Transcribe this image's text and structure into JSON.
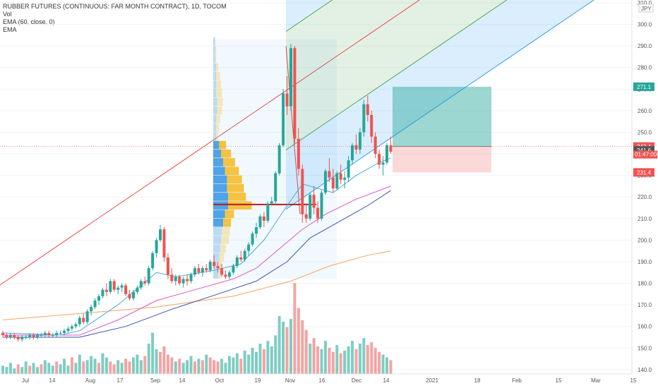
{
  "header": {
    "title": "RUBBER FUTURES (CONTINUOUS: FAR MONTH CONTRACT), 1D, TOCOM",
    "indicators": [
      "Vol",
      "EMA (60, close, 0)",
      "EMA"
    ]
  },
  "currency": "JPY",
  "colors": {
    "up": "#26a69a",
    "down": "#ef5350",
    "vol_up": "#7fcdc3",
    "vol_down": "#f5a3a3",
    "ema_fast": "#4ea8de",
    "ema_mid": "#e056c4",
    "ema_slow": "#f4a460",
    "pitch_red": "#e53935",
    "pitch_green": "#43a047",
    "pitch_blue": "#2196f3",
    "poc": "#b71c1c",
    "vp_up": "#4fa3e8",
    "vp_down": "#f5c242"
  },
  "price_tags": [
    {
      "value": 271.1,
      "label": "271.1",
      "color": "#26a69a"
    },
    {
      "value": 243.4,
      "label": "243.4",
      "color": "#ef5350"
    },
    {
      "value": 241.6,
      "label": "241.6",
      "color": "#555555"
    },
    {
      "value": 231.4,
      "label": "231.4",
      "color": "#ef5350"
    }
  ],
  "countdown": "01:47:00",
  "chart_data": {
    "type": "candlestick",
    "yaxis": {
      "min": 138,
      "max": 310,
      "ticks": [
        140,
        150,
        160,
        170,
        180,
        190,
        200,
        210,
        220,
        230,
        240,
        250,
        260,
        270,
        280,
        290,
        300,
        310
      ]
    },
    "xaxis": {
      "ticks": [
        "Jul",
        "14",
        "Aug",
        "17",
        "Sep",
        "14",
        "Oct",
        "19",
        "Nov",
        "16",
        "Dec",
        "14",
        "2021",
        "18",
        "Feb",
        "15",
        "Mar",
        "15"
      ]
    },
    "candles": [
      [
        157,
        158,
        155,
        156
      ],
      [
        156,
        157,
        154,
        155
      ],
      [
        155,
        157,
        154,
        156
      ],
      [
        156,
        157,
        154,
        155
      ],
      [
        155,
        156,
        153,
        154
      ],
      [
        154,
        156,
        153,
        155
      ],
      [
        155,
        156,
        154,
        155
      ],
      [
        155,
        157,
        154,
        156
      ],
      [
        156,
        157,
        154,
        155
      ],
      [
        155,
        157,
        154,
        156
      ],
      [
        156,
        157,
        155,
        156
      ],
      [
        156,
        158,
        155,
        157
      ],
      [
        157,
        158,
        155,
        156
      ],
      [
        156,
        157,
        155,
        156
      ],
      [
        156,
        158,
        155,
        157
      ],
      [
        157,
        158,
        156,
        157
      ],
      [
        157,
        159,
        156,
        158
      ],
      [
        158,
        160,
        157,
        159
      ],
      [
        159,
        161,
        158,
        160
      ],
      [
        160,
        162,
        159,
        161
      ],
      [
        161,
        165,
        160,
        164
      ],
      [
        164,
        166,
        161,
        162
      ],
      [
        162,
        168,
        161,
        167
      ],
      [
        167,
        170,
        165,
        169
      ],
      [
        169,
        173,
        168,
        172
      ],
      [
        172,
        175,
        170,
        174
      ],
      [
        174,
        178,
        173,
        177
      ],
      [
        177,
        180,
        174,
        176
      ],
      [
        176,
        182,
        175,
        181
      ],
      [
        181,
        182,
        176,
        177
      ],
      [
        177,
        179,
        175,
        178
      ],
      [
        178,
        180,
        176,
        179
      ],
      [
        179,
        180,
        174,
        175
      ],
      [
        175,
        177,
        172,
        173
      ],
      [
        173,
        177,
        172,
        176
      ],
      [
        176,
        179,
        175,
        178
      ],
      [
        178,
        182,
        177,
        181
      ],
      [
        181,
        183,
        179,
        180
      ],
      [
        180,
        188,
        179,
        187
      ],
      [
        187,
        195,
        186,
        194
      ],
      [
        194,
        201,
        192,
        200
      ],
      [
        200,
        207,
        199,
        205
      ],
      [
        205,
        206,
        190,
        192
      ],
      [
        192,
        194,
        182,
        184
      ],
      [
        184,
        187,
        180,
        181
      ],
      [
        181,
        184,
        179,
        183
      ],
      [
        183,
        184,
        179,
        180
      ],
      [
        180,
        183,
        178,
        182
      ],
      [
        182,
        184,
        179,
        181
      ],
      [
        181,
        185,
        180,
        184
      ],
      [
        184,
        188,
        183,
        187
      ],
      [
        187,
        189,
        184,
        185
      ],
      [
        185,
        188,
        183,
        187
      ],
      [
        187,
        189,
        185,
        186
      ],
      [
        186,
        191,
        185,
        190
      ],
      [
        190,
        193,
        187,
        188
      ],
      [
        188,
        190,
        185,
        187
      ],
      [
        187,
        189,
        183,
        184
      ],
      [
        184,
        186,
        182,
        183
      ],
      [
        183,
        186,
        182,
        185
      ],
      [
        185,
        189,
        184,
        188
      ],
      [
        188,
        193,
        187,
        192
      ],
      [
        192,
        195,
        190,
        191
      ],
      [
        191,
        196,
        190,
        195
      ],
      [
        195,
        199,
        193,
        198
      ],
      [
        198,
        204,
        197,
        203
      ],
      [
        203,
        208,
        201,
        206
      ],
      [
        206,
        212,
        205,
        211
      ],
      [
        211,
        213,
        206,
        209
      ],
      [
        209,
        218,
        208,
        217
      ],
      [
        217,
        220,
        216,
        218
      ],
      [
        218,
        232,
        217,
        231
      ],
      [
        231,
        245,
        230,
        244
      ],
      [
        244,
        270,
        243,
        268
      ],
      [
        268,
        276,
        258,
        262
      ],
      [
        262,
        291,
        260,
        289
      ],
      [
        289,
        290,
        245,
        247
      ],
      [
        247,
        252,
        230,
        233
      ],
      [
        233,
        235,
        208,
        212
      ],
      [
        212,
        217,
        208,
        210
      ],
      [
        210,
        222,
        209,
        221
      ],
      [
        221,
        225,
        212,
        215
      ],
      [
        215,
        218,
        208,
        210
      ],
      [
        210,
        223,
        209,
        222
      ],
      [
        222,
        233,
        221,
        232
      ],
      [
        232,
        238,
        227,
        229
      ],
      [
        229,
        233,
        222,
        224
      ],
      [
        224,
        232,
        223,
        231
      ],
      [
        231,
        235,
        226,
        228
      ],
      [
        228,
        232,
        224,
        229
      ],
      [
        229,
        239,
        227,
        237
      ],
      [
        237,
        245,
        235,
        244
      ],
      [
        244,
        249,
        240,
        242
      ],
      [
        242,
        252,
        240,
        250
      ],
      [
        250,
        265,
        248,
        263
      ],
      [
        263,
        267,
        255,
        258
      ],
      [
        258,
        260,
        245,
        248
      ],
      [
        248,
        250,
        238,
        240
      ],
      [
        240,
        242,
        233,
        235
      ],
      [
        235,
        239,
        230,
        236
      ],
      [
        236,
        245,
        235,
        244
      ],
      [
        244,
        248,
        240,
        241
      ]
    ],
    "volumes": [
      [
        6,
        0
      ],
      [
        5,
        0
      ],
      [
        8,
        0
      ],
      [
        4,
        0
      ],
      [
        7,
        1
      ],
      [
        5,
        0
      ],
      [
        9,
        0
      ],
      [
        6,
        1
      ],
      [
        8,
        0
      ],
      [
        5,
        0
      ],
      [
        7,
        1
      ],
      [
        10,
        0
      ],
      [
        8,
        0
      ],
      [
        6,
        0
      ],
      [
        9,
        1
      ],
      [
        7,
        0
      ],
      [
        11,
        0
      ],
      [
        6,
        0
      ],
      [
        12,
        1
      ],
      [
        8,
        0
      ],
      [
        14,
        0
      ],
      [
        9,
        1
      ],
      [
        10,
        0
      ],
      [
        13,
        0
      ],
      [
        11,
        0
      ],
      [
        8,
        1
      ],
      [
        15,
        0
      ],
      [
        12,
        0
      ],
      [
        9,
        1
      ],
      [
        7,
        1
      ],
      [
        10,
        0
      ],
      [
        8,
        0
      ],
      [
        11,
        1
      ],
      [
        9,
        1
      ],
      [
        12,
        0
      ],
      [
        14,
        0
      ],
      [
        10,
        0
      ],
      [
        13,
        1
      ],
      [
        22,
        0
      ],
      [
        30,
        0
      ],
      [
        18,
        0
      ],
      [
        16,
        1
      ],
      [
        20,
        1
      ],
      [
        14,
        1
      ],
      [
        12,
        1
      ],
      [
        9,
        0
      ],
      [
        11,
        1
      ],
      [
        8,
        0
      ],
      [
        10,
        0
      ],
      [
        13,
        0
      ],
      [
        9,
        1
      ],
      [
        11,
        0
      ],
      [
        10,
        1
      ],
      [
        14,
        0
      ],
      [
        12,
        1
      ],
      [
        10,
        1
      ],
      [
        9,
        1
      ],
      [
        11,
        0
      ],
      [
        8,
        0
      ],
      [
        13,
        0
      ],
      [
        12,
        0
      ],
      [
        15,
        0
      ],
      [
        11,
        1
      ],
      [
        17,
        0
      ],
      [
        14,
        0
      ],
      [
        19,
        0
      ],
      [
        16,
        0
      ],
      [
        22,
        0
      ],
      [
        18,
        1
      ],
      [
        24,
        0
      ],
      [
        20,
        0
      ],
      [
        28,
        0
      ],
      [
        42,
        0
      ],
      [
        38,
        0
      ],
      [
        34,
        1
      ],
      [
        40,
        0
      ],
      [
        66,
        1
      ],
      [
        48,
        1
      ],
      [
        39,
        1
      ],
      [
        32,
        1
      ],
      [
        22,
        0
      ],
      [
        26,
        1
      ],
      [
        20,
        1
      ],
      [
        18,
        0
      ],
      [
        24,
        0
      ],
      [
        19,
        1
      ],
      [
        16,
        1
      ],
      [
        21,
        0
      ],
      [
        15,
        1
      ],
      [
        17,
        0
      ],
      [
        20,
        0
      ],
      [
        24,
        0
      ],
      [
        18,
        1
      ],
      [
        22,
        0
      ],
      [
        26,
        0
      ],
      [
        21,
        1
      ],
      [
        23,
        1
      ],
      [
        19,
        1
      ],
      [
        16,
        1
      ],
      [
        14,
        0
      ],
      [
        12,
        0
      ],
      [
        10,
        1
      ]
    ],
    "ema_fast": [
      [
        0,
        157
      ],
      [
        15,
        156
      ],
      [
        20,
        158
      ],
      [
        30,
        170
      ],
      [
        40,
        185
      ],
      [
        45,
        183
      ],
      [
        55,
        186
      ],
      [
        62,
        189
      ],
      [
        68,
        200
      ],
      [
        74,
        216
      ],
      [
        78,
        226
      ],
      [
        80,
        225
      ],
      [
        86,
        222
      ],
      [
        92,
        230
      ],
      [
        98,
        236
      ],
      [
        101,
        238
      ]
    ],
    "ema_mid": [
      [
        0,
        156
      ],
      [
        20,
        156
      ],
      [
        30,
        163
      ],
      [
        40,
        172
      ],
      [
        50,
        177
      ],
      [
        60,
        182
      ],
      [
        66,
        187
      ],
      [
        72,
        196
      ],
      [
        78,
        205
      ],
      [
        84,
        212
      ],
      [
        92,
        219
      ],
      [
        101,
        225
      ]
    ],
    "ema_long": [
      [
        0,
        155
      ],
      [
        20,
        155
      ],
      [
        32,
        160
      ],
      [
        44,
        168
      ],
      [
        56,
        175
      ],
      [
        66,
        181
      ],
      [
        74,
        190
      ],
      [
        80,
        201
      ],
      [
        88,
        209
      ],
      [
        95,
        216
      ],
      [
        101,
        223
      ]
    ],
    "ema_slow": [
      [
        0,
        163
      ],
      [
        20,
        166
      ],
      [
        40,
        169
      ],
      [
        60,
        174
      ],
      [
        75,
        181
      ],
      [
        85,
        188
      ],
      [
        95,
        193
      ],
      [
        101,
        195
      ]
    ],
    "volume_profile": {
      "rows": [
        {
          "price": 292,
          "up": 2,
          "down": 0
        },
        {
          "price": 288,
          "up": 2,
          "down": 1
        },
        {
          "price": 284,
          "up": 2,
          "down": 1
        },
        {
          "price": 280,
          "up": 3,
          "down": 2
        },
        {
          "price": 276,
          "up": 3,
          "down": 4
        },
        {
          "price": 272,
          "up": 3,
          "down": 5
        },
        {
          "price": 268,
          "up": 3,
          "down": 6
        },
        {
          "price": 264,
          "up": 4,
          "down": 6
        },
        {
          "price": 260,
          "up": 4,
          "down": 5
        },
        {
          "price": 256,
          "up": 3,
          "down": 4
        },
        {
          "price": 252,
          "up": 3,
          "down": 3
        },
        {
          "price": 248,
          "up": 3,
          "down": 2
        },
        {
          "price": 244,
          "up": 6,
          "down": 7
        },
        {
          "price": 240,
          "up": 8,
          "down": 10
        },
        {
          "price": 236,
          "up": 10,
          "down": 12
        },
        {
          "price": 232,
          "up": 12,
          "down": 14
        },
        {
          "price": 228,
          "up": 14,
          "down": 15
        },
        {
          "price": 224,
          "up": 14,
          "down": 17
        },
        {
          "price": 220,
          "up": 15,
          "down": 18
        },
        {
          "price": 216,
          "up": 15,
          "down": 24
        },
        {
          "price": 212,
          "up": 12,
          "down": 9
        },
        {
          "price": 208,
          "up": 10,
          "down": 8
        },
        {
          "price": 204,
          "up": 9,
          "down": 8
        },
        {
          "price": 200,
          "up": 8,
          "down": 8
        },
        {
          "price": 196,
          "up": 7,
          "down": 6
        },
        {
          "price": 192,
          "up": 6,
          "down": 5
        },
        {
          "price": 188,
          "up": 5,
          "down": 4
        },
        {
          "price": 184,
          "up": 5,
          "down": 3
        }
      ],
      "poc_price": 216.5,
      "price_range": [
        182,
        293
      ]
    },
    "position": {
      "entry": 243.4,
      "target": 271.1,
      "stop": 231.4
    }
  }
}
